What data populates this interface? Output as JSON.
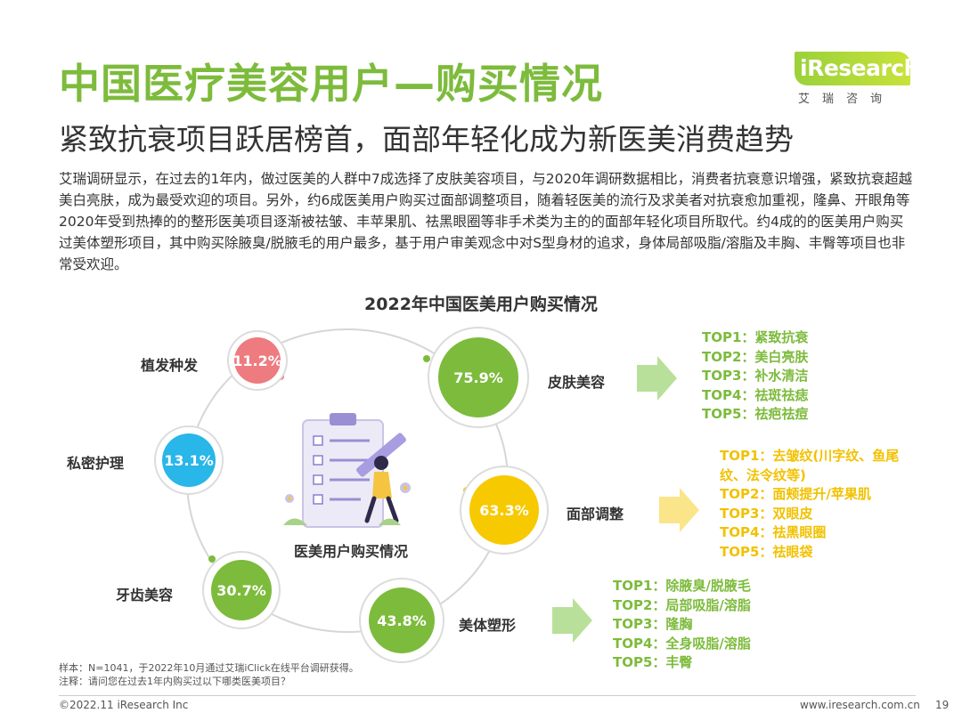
{
  "header": {
    "title": "中国医疗美容用户—购买情况",
    "subtitle": "紧致抗衰项目跃居榜首，面部年轻化成为新医美消费趋势",
    "logo_text": "iResearch",
    "logo_sub": "艾瑞咨询"
  },
  "body_text": "艾瑞调研显示，在过去的1年内，做过医美的人群中7成选择了皮肤美容项目，与2020年调研数据相比，消费者抗衰意识增强，紧致抗衰超越美白亮肤，成为最受欢迎的项目。另外，约6成医美用户购买过面部调整项目，随着轻医美的流行及求美者对抗衰愈加重视，隆鼻、开眼角等2020年受到热捧的的整形医美项目逐渐被祛皱、丰苹果肌、祛黑眼圈等非手术类为主的的面部年轻化项目所取代。约4成的的医美用户购买过美体塑形项目，其中购买除腋臭/脱腋毛的用户最多，基于用户审美观念中对S型身材的追求，身体局部吸脂/溶脂及丰胸、丰臀等项目也非常受欢迎。",
  "chart_data": {
    "type": "diagram",
    "title": "2022年中国医美用户购买情况",
    "center_label": "医美用户购买情况",
    "categories": [
      {
        "name": "皮肤美容",
        "value_label": "75.9%",
        "value": 75.9,
        "color": "#7dbb3c"
      },
      {
        "name": "面部调整",
        "value_label": "63.3%",
        "value": 63.3,
        "color": "#f7c900"
      },
      {
        "name": "美体塑形",
        "value_label": "43.8%",
        "value": 43.8,
        "color": "#7dbb3c"
      },
      {
        "name": "牙齿美容",
        "value_label": "30.7%",
        "value": 30.7,
        "color": "#7dbb3c"
      },
      {
        "name": "私密护理",
        "value_label": "13.1%",
        "value": 13.1,
        "color": "#29b6e8"
      },
      {
        "name": "植发种发",
        "value_label": "11.2%",
        "value": 11.2,
        "color": "#ee7b7f"
      }
    ],
    "top_lists": {
      "skin": [
        "TOP1：紧致抗衰",
        "TOP2：美白亮肤",
        "TOP3：补水清洁",
        "TOP4：祛斑祛痣",
        "TOP5：祛疤祛痘"
      ],
      "face": [
        "TOP1：去皱纹(川字纹、鱼尾",
        "纹、法令纹等)",
        "TOP2：面颊提升/苹果肌",
        "TOP3：双眼皮",
        "TOP4：祛黑眼圈",
        "TOP5：祛眼袋"
      ],
      "body": [
        "TOP1：除腋臭/脱腋毛",
        "TOP2：局部吸脂/溶脂",
        "TOP3：隆胸",
        "TOP4：全身吸脂/溶脂",
        "TOP5：丰臀"
      ]
    }
  },
  "footnotes": {
    "sample": "样本：N=1041，于2022年10月通过艾瑞iClick在线平台调研获得。",
    "note": "注释：请问您在过去1年内购买过以下哪类医美项目？"
  },
  "footer": {
    "copyright": "©2022.11 iResearch Inc",
    "website": "www.iresearch.com.cn",
    "page": "19"
  }
}
